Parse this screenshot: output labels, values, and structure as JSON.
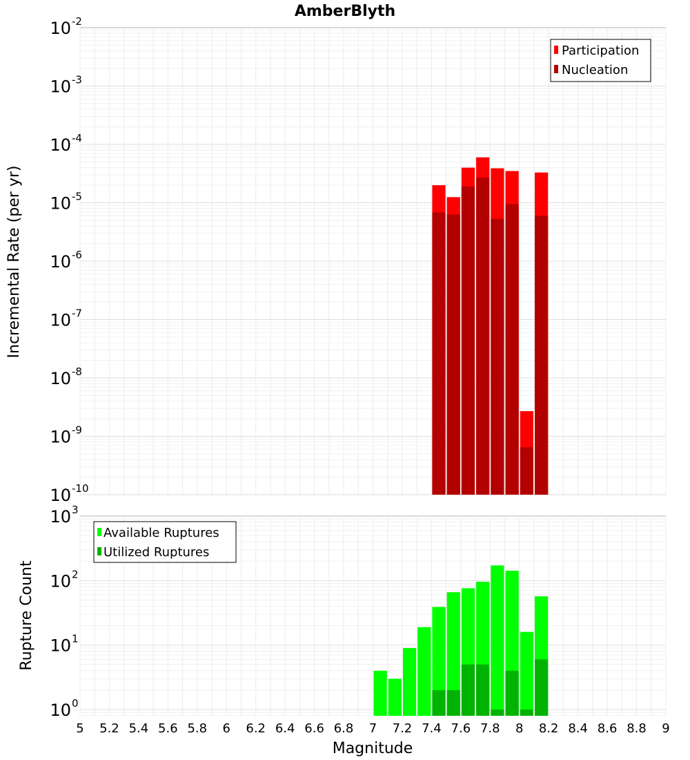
{
  "chart_data": [
    {
      "type": "bar",
      "title": "AmberBlyth",
      "xlabel": "",
      "ylabel": "Incremental Rate (per yr)",
      "xlim": [
        5,
        9
      ],
      "ylim": [
        1e-10,
        0.01
      ],
      "yscale": "log",
      "grid": true,
      "legend_position": "top-right",
      "bar_width": 0.1,
      "x": [
        7.45,
        7.55,
        7.65,
        7.75,
        7.85,
        7.95,
        8.05,
        8.15
      ],
      "series": [
        {
          "name": "Participation",
          "color": "#ff0000",
          "values": [
            2e-05,
            1.25e-05,
            4e-05,
            6e-05,
            3.9e-05,
            3.5e-05,
            2.7e-09,
            3.3e-05
          ]
        },
        {
          "name": "Nucleation",
          "color": "#b30000",
          "values": [
            6.8e-06,
            6.3e-06,
            1.9e-05,
            2.7e-05,
            5.3e-06,
            9.5e-06,
            6.5e-10,
            6e-06
          ]
        }
      ],
      "y_ticks": [
        {
          "base": "10",
          "exp": "-10"
        },
        {
          "base": "10",
          "exp": "-9"
        },
        {
          "base": "10",
          "exp": "-8"
        },
        {
          "base": "10",
          "exp": "-7"
        },
        {
          "base": "10",
          "exp": "-6"
        },
        {
          "base": "10",
          "exp": "-5"
        },
        {
          "base": "10",
          "exp": "-4"
        },
        {
          "base": "10",
          "exp": "-3"
        },
        {
          "base": "10",
          "exp": "-2"
        }
      ]
    },
    {
      "type": "bar",
      "title": "",
      "xlabel": "Magnitude",
      "ylabel": "Rupture Count",
      "xlim": [
        5,
        9
      ],
      "ylim": [
        0.8,
        1000
      ],
      "yscale": "log",
      "grid": true,
      "legend_position": "top-left",
      "bar_width": 0.1,
      "x": [
        7.05,
        7.15,
        7.25,
        7.35,
        7.45,
        7.55,
        7.65,
        7.75,
        7.85,
        7.95,
        8.05,
        8.15
      ],
      "series": [
        {
          "name": "Available Ruptures",
          "color": "#00ff00",
          "values": [
            4,
            3,
            9,
            19,
            39,
            66,
            76,
            96,
            172,
            142,
            16,
            57
          ]
        },
        {
          "name": "Utilized Ruptures",
          "color": "#00b300",
          "values": [
            0,
            0,
            0,
            0,
            2,
            2,
            5,
            5,
            1,
            4,
            1,
            6
          ]
        }
      ],
      "x_ticks": [
        "5",
        "5.2",
        "5.4",
        "5.6",
        "5.8",
        "6",
        "6.2",
        "6.4",
        "6.6",
        "6.8",
        "7",
        "7.2",
        "7.4",
        "7.6",
        "7.8",
        "8",
        "8.2",
        "8.4",
        "8.6",
        "8.8",
        "9"
      ],
      "y_ticks": [
        {
          "base": "10",
          "exp": "0"
        },
        {
          "base": "10",
          "exp": "1"
        },
        {
          "base": "10",
          "exp": "2"
        },
        {
          "base": "10",
          "exp": "3"
        }
      ]
    }
  ]
}
